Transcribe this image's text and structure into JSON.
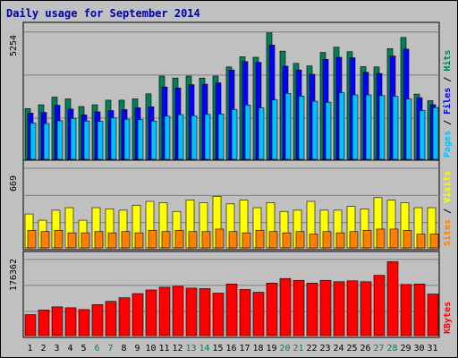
{
  "chart_data": {
    "title": "Daily usage for September 2014",
    "type": "bar",
    "categories": [
      "1",
      "2",
      "3",
      "4",
      "5",
      "6",
      "7",
      "8",
      "9",
      "10",
      "11",
      "12",
      "13",
      "14",
      "15",
      "16",
      "17",
      "18",
      "19",
      "20",
      "21",
      "22",
      "23",
      "24",
      "25",
      "26",
      "27",
      "28",
      "29",
      "30",
      "31"
    ],
    "weekend_days": [
      "6",
      "7",
      "13",
      "14",
      "20",
      "21",
      "27",
      "28"
    ],
    "panels": [
      {
        "id": "hits_files_pages",
        "ymax_label": "5254",
        "ymax": 5254,
        "legend": [
          "Pages",
          "Files",
          "Hits"
        ],
        "series": [
          {
            "name": "Hits",
            "color": "#00805c",
            "values": [
              2000,
              2150,
              2450,
              2380,
              2080,
              2150,
              2330,
              2330,
              2380,
              2580,
              3280,
              3200,
              3280,
              3200,
              3280,
              3640,
              4040,
              4020,
              4980,
              4260,
              3780,
              3680,
              4210,
              4420,
              4240,
              3650,
              3640,
              4360,
              4800,
              2570,
              2310
            ]
          },
          {
            "name": "Files",
            "color": "#0000ff",
            "values": [
              1820,
              1850,
              2130,
              1980,
              1750,
              1870,
              1920,
              1960,
              2030,
              2070,
              2850,
              2810,
              2940,
              2960,
              3010,
              3520,
              3850,
              3820,
              4500,
              3670,
              3520,
              3350,
              3940,
              4020,
              4000,
              3430,
              3380,
              4070,
              4340,
              2430,
              2150
            ]
          },
          {
            "name": "Pages",
            "color": "#00c0ff",
            "values": [
              1430,
              1410,
              1520,
              1610,
              1510,
              1500,
              1630,
              1580,
              1560,
              1510,
              1700,
              1760,
              1720,
              1770,
              1790,
              1960,
              2140,
              2030,
              2340,
              2600,
              2490,
              2290,
              2250,
              2620,
              2540,
              2540,
              2510,
              2480,
              2380,
              1930,
              2040
            ]
          }
        ]
      },
      {
        "id": "visits_sites",
        "ymax_label": "669",
        "ymax": 669,
        "legend": [
          "Sites",
          "Visits"
        ],
        "series": [
          {
            "name": "Visits",
            "color": "#ffff00",
            "values": [
              270,
              220,
              300,
              320,
              220,
              320,
              310,
              300,
              340,
              370,
              360,
              290,
              380,
              360,
              410,
              350,
              380,
              320,
              360,
              290,
              300,
              370,
              300,
              300,
              330,
              310,
              400,
              380,
              360,
              320,
              320
            ]
          },
          {
            "name": "Sites",
            "color": "#ff8000",
            "values": [
              140,
              130,
              140,
              120,
              120,
              130,
              120,
              130,
              120,
              140,
              130,
              140,
              130,
              130,
              150,
              130,
              120,
              140,
              130,
              120,
              130,
              110,
              130,
              120,
              130,
              140,
              150,
              150,
              140,
              110,
              110
            ]
          }
        ]
      },
      {
        "id": "kbytes",
        "ymax_label": "176362",
        "ymax": 176362,
        "legend": [
          "KBytes"
        ],
        "series": [
          {
            "name": "KBytes",
            "color": "#ff0000",
            "values": [
              46000,
              56000,
              63000,
              61000,
              57000,
              68000,
              75000,
              83000,
              92000,
              100000,
              106000,
              108000,
              104000,
              103000,
              93000,
              113000,
              101000,
              95000,
              115000,
              125000,
              121000,
              115000,
              121000,
              118000,
              120000,
              118000,
              132000,
              162000,
              112000,
              113000,
              91000
            ]
          }
        ]
      }
    ]
  }
}
